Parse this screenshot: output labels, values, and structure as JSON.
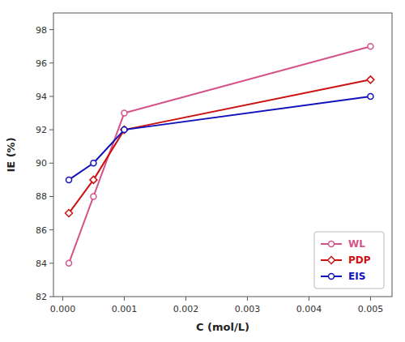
{
  "chart_data": {
    "type": "line",
    "x_label": "C (mol/L)",
    "y_label": "IE (%)",
    "x": [
      0.0001,
      0.0005,
      0.001,
      0.005
    ],
    "series": [
      {
        "name": "WL",
        "color": "#d4548a",
        "marker": "circle",
        "values": [
          84.0,
          88.0,
          93.0,
          97.0
        ]
      },
      {
        "name": "PDP",
        "color": "#cc1111",
        "marker": "diamond",
        "values": [
          87.0,
          89.0,
          92.0,
          95.0
        ]
      },
      {
        "name": "EIS",
        "color": "#1111bb",
        "marker": "circle",
        "values": [
          89.0,
          90.0,
          92.0,
          94.0
        ]
      }
    ],
    "xlim": [
      -0.00015,
      0.00535
    ],
    "ylim": [
      82,
      99
    ],
    "xticks": [
      {
        "value": 0.0,
        "label": "0.000"
      },
      {
        "value": 0.001,
        "label": "0.001"
      },
      {
        "value": 0.002,
        "label": "0.002"
      },
      {
        "value": 0.003,
        "label": "0.003"
      },
      {
        "value": 0.004,
        "label": "0.004"
      },
      {
        "value": 0.005,
        "label": "0.005"
      }
    ],
    "yticks": [
      82,
      84,
      86,
      88,
      90,
      92,
      94,
      96,
      98
    ],
    "grid": false,
    "legend": "lower right"
  }
}
